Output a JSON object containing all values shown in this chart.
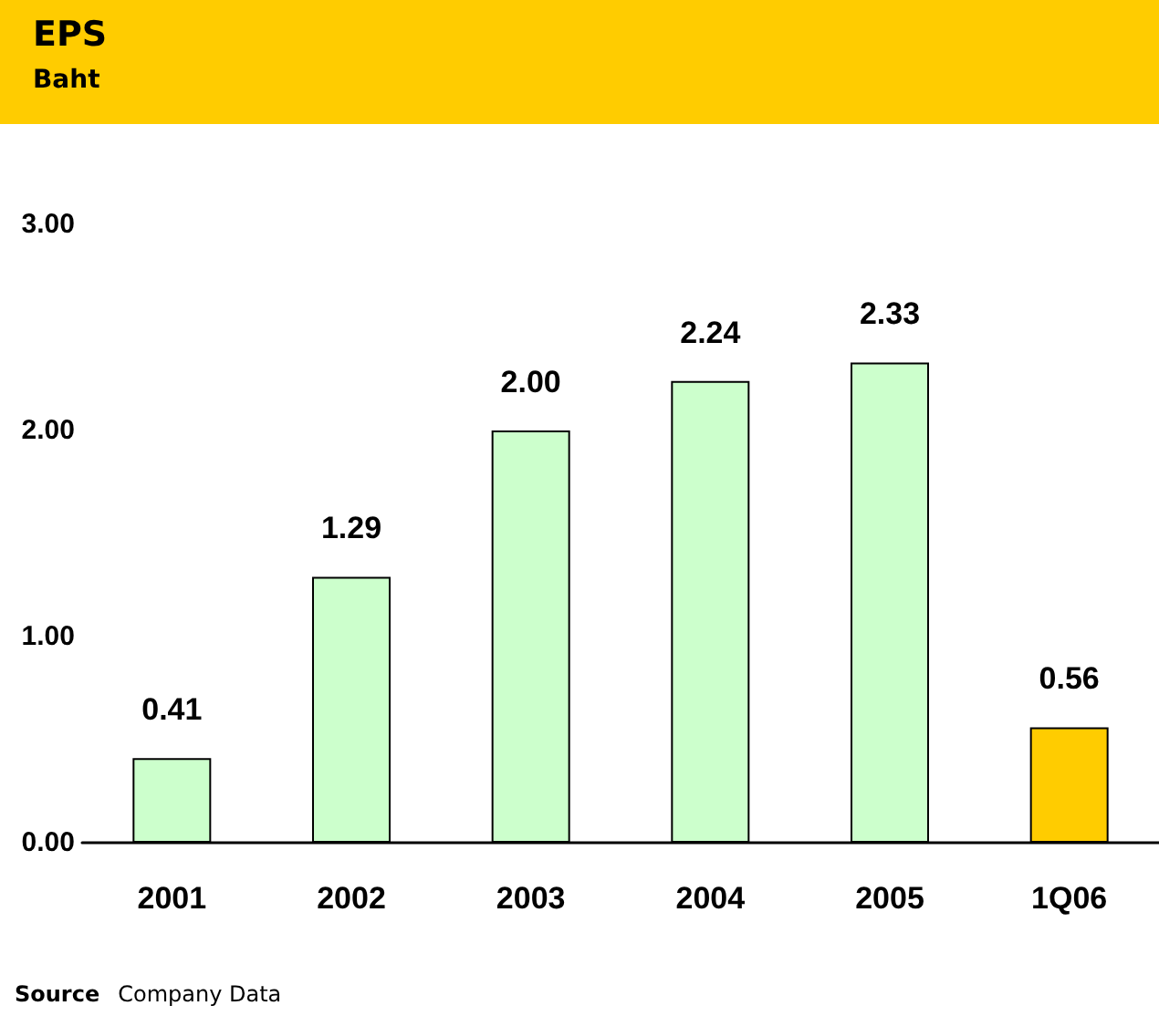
{
  "chart_data": {
    "type": "bar",
    "title": "EPS",
    "subtitle": "Baht",
    "categories": [
      "2001",
      "2002",
      "2003",
      "2004",
      "2005",
      "1Q06"
    ],
    "values": [
      0.41,
      1.29,
      2.0,
      2.24,
      2.33,
      0.56
    ],
    "colors": [
      "#ccffcc",
      "#ccffcc",
      "#ccffcc",
      "#ccffcc",
      "#ccffcc",
      "#ffcc00"
    ],
    "ylim": [
      0,
      3
    ],
    "yticks": [
      {
        "value": 0,
        "label": "0.00"
      },
      {
        "value": 1,
        "label": "1.00"
      },
      {
        "value": 2,
        "label": "2.00"
      },
      {
        "value": 3,
        "label": "3.00"
      }
    ],
    "grid": false,
    "value_labels": [
      "0.41",
      "1.29",
      "2.00",
      "2.24",
      "2.33",
      "0.56"
    ],
    "annotations": [
      "Source",
      "Company Data"
    ]
  }
}
